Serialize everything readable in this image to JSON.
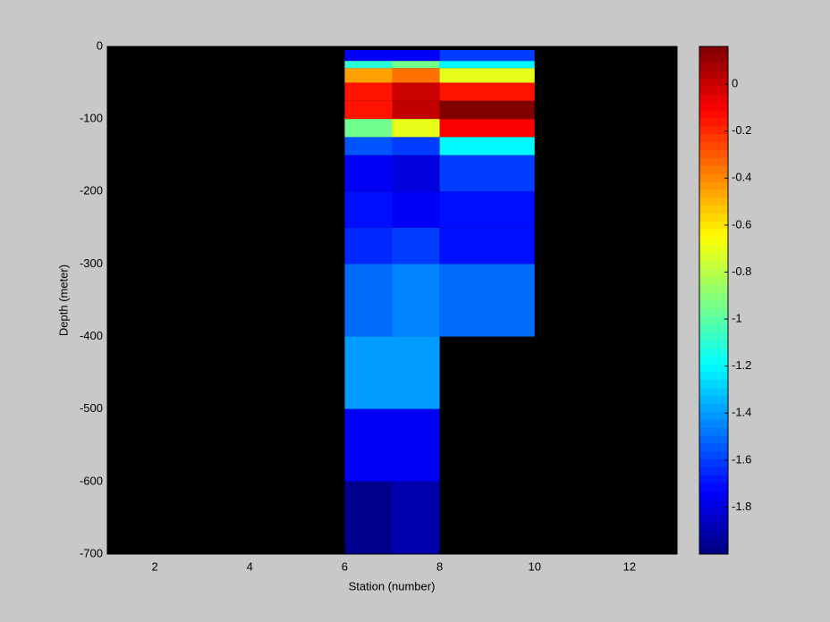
{
  "chart_data": {
    "type": "heatmap",
    "x_label": "Station (number)",
    "y_label": "Depth (meter)",
    "xlim": [
      1,
      13
    ],
    "xticks": [
      2,
      4,
      6,
      8,
      10,
      12
    ],
    "ylim": [
      -700,
      0
    ],
    "yticks": [
      0,
      -100,
      -200,
      -300,
      -400,
      -500,
      -600,
      -700
    ],
    "x_edges": [
      6,
      7,
      8,
      10
    ],
    "y_edges": [
      -5,
      -20,
      -30,
      -50,
      -75,
      -100,
      -125,
      -150,
      -200,
      -250,
      -300,
      -400,
      -500,
      -600,
      -700
    ],
    "values": [
      [
        -1.75,
        -1.75,
        -1.6
      ],
      [
        -1.1,
        -0.95,
        -1.2
      ],
      [
        -0.45,
        -0.35,
        -0.7
      ],
      [
        -0.15,
        0.0,
        -0.15
      ],
      [
        -0.15,
        0.02,
        0.16
      ],
      [
        -0.95,
        -0.7,
        -0.1
      ],
      [
        -1.55,
        -1.6,
        -1.2
      ],
      [
        -1.75,
        -1.8,
        -1.6
      ],
      [
        -1.7,
        -1.75,
        -1.7
      ],
      [
        -1.65,
        -1.6,
        -1.7
      ],
      [
        -1.5,
        -1.45,
        -1.5
      ],
      [
        -1.4,
        -1.4,
        null
      ],
      [
        -1.75,
        -1.75,
        null
      ],
      [
        -1.97,
        -1.9,
        null
      ]
    ],
    "colormap": "jet",
    "background": "#000000",
    "clim": [
      -2,
      0.16
    ],
    "cticks": [
      0,
      -0.2,
      -0.4,
      -0.6,
      -0.8,
      -1,
      -1.2,
      -1.4,
      -1.6,
      -1.8
    ]
  }
}
